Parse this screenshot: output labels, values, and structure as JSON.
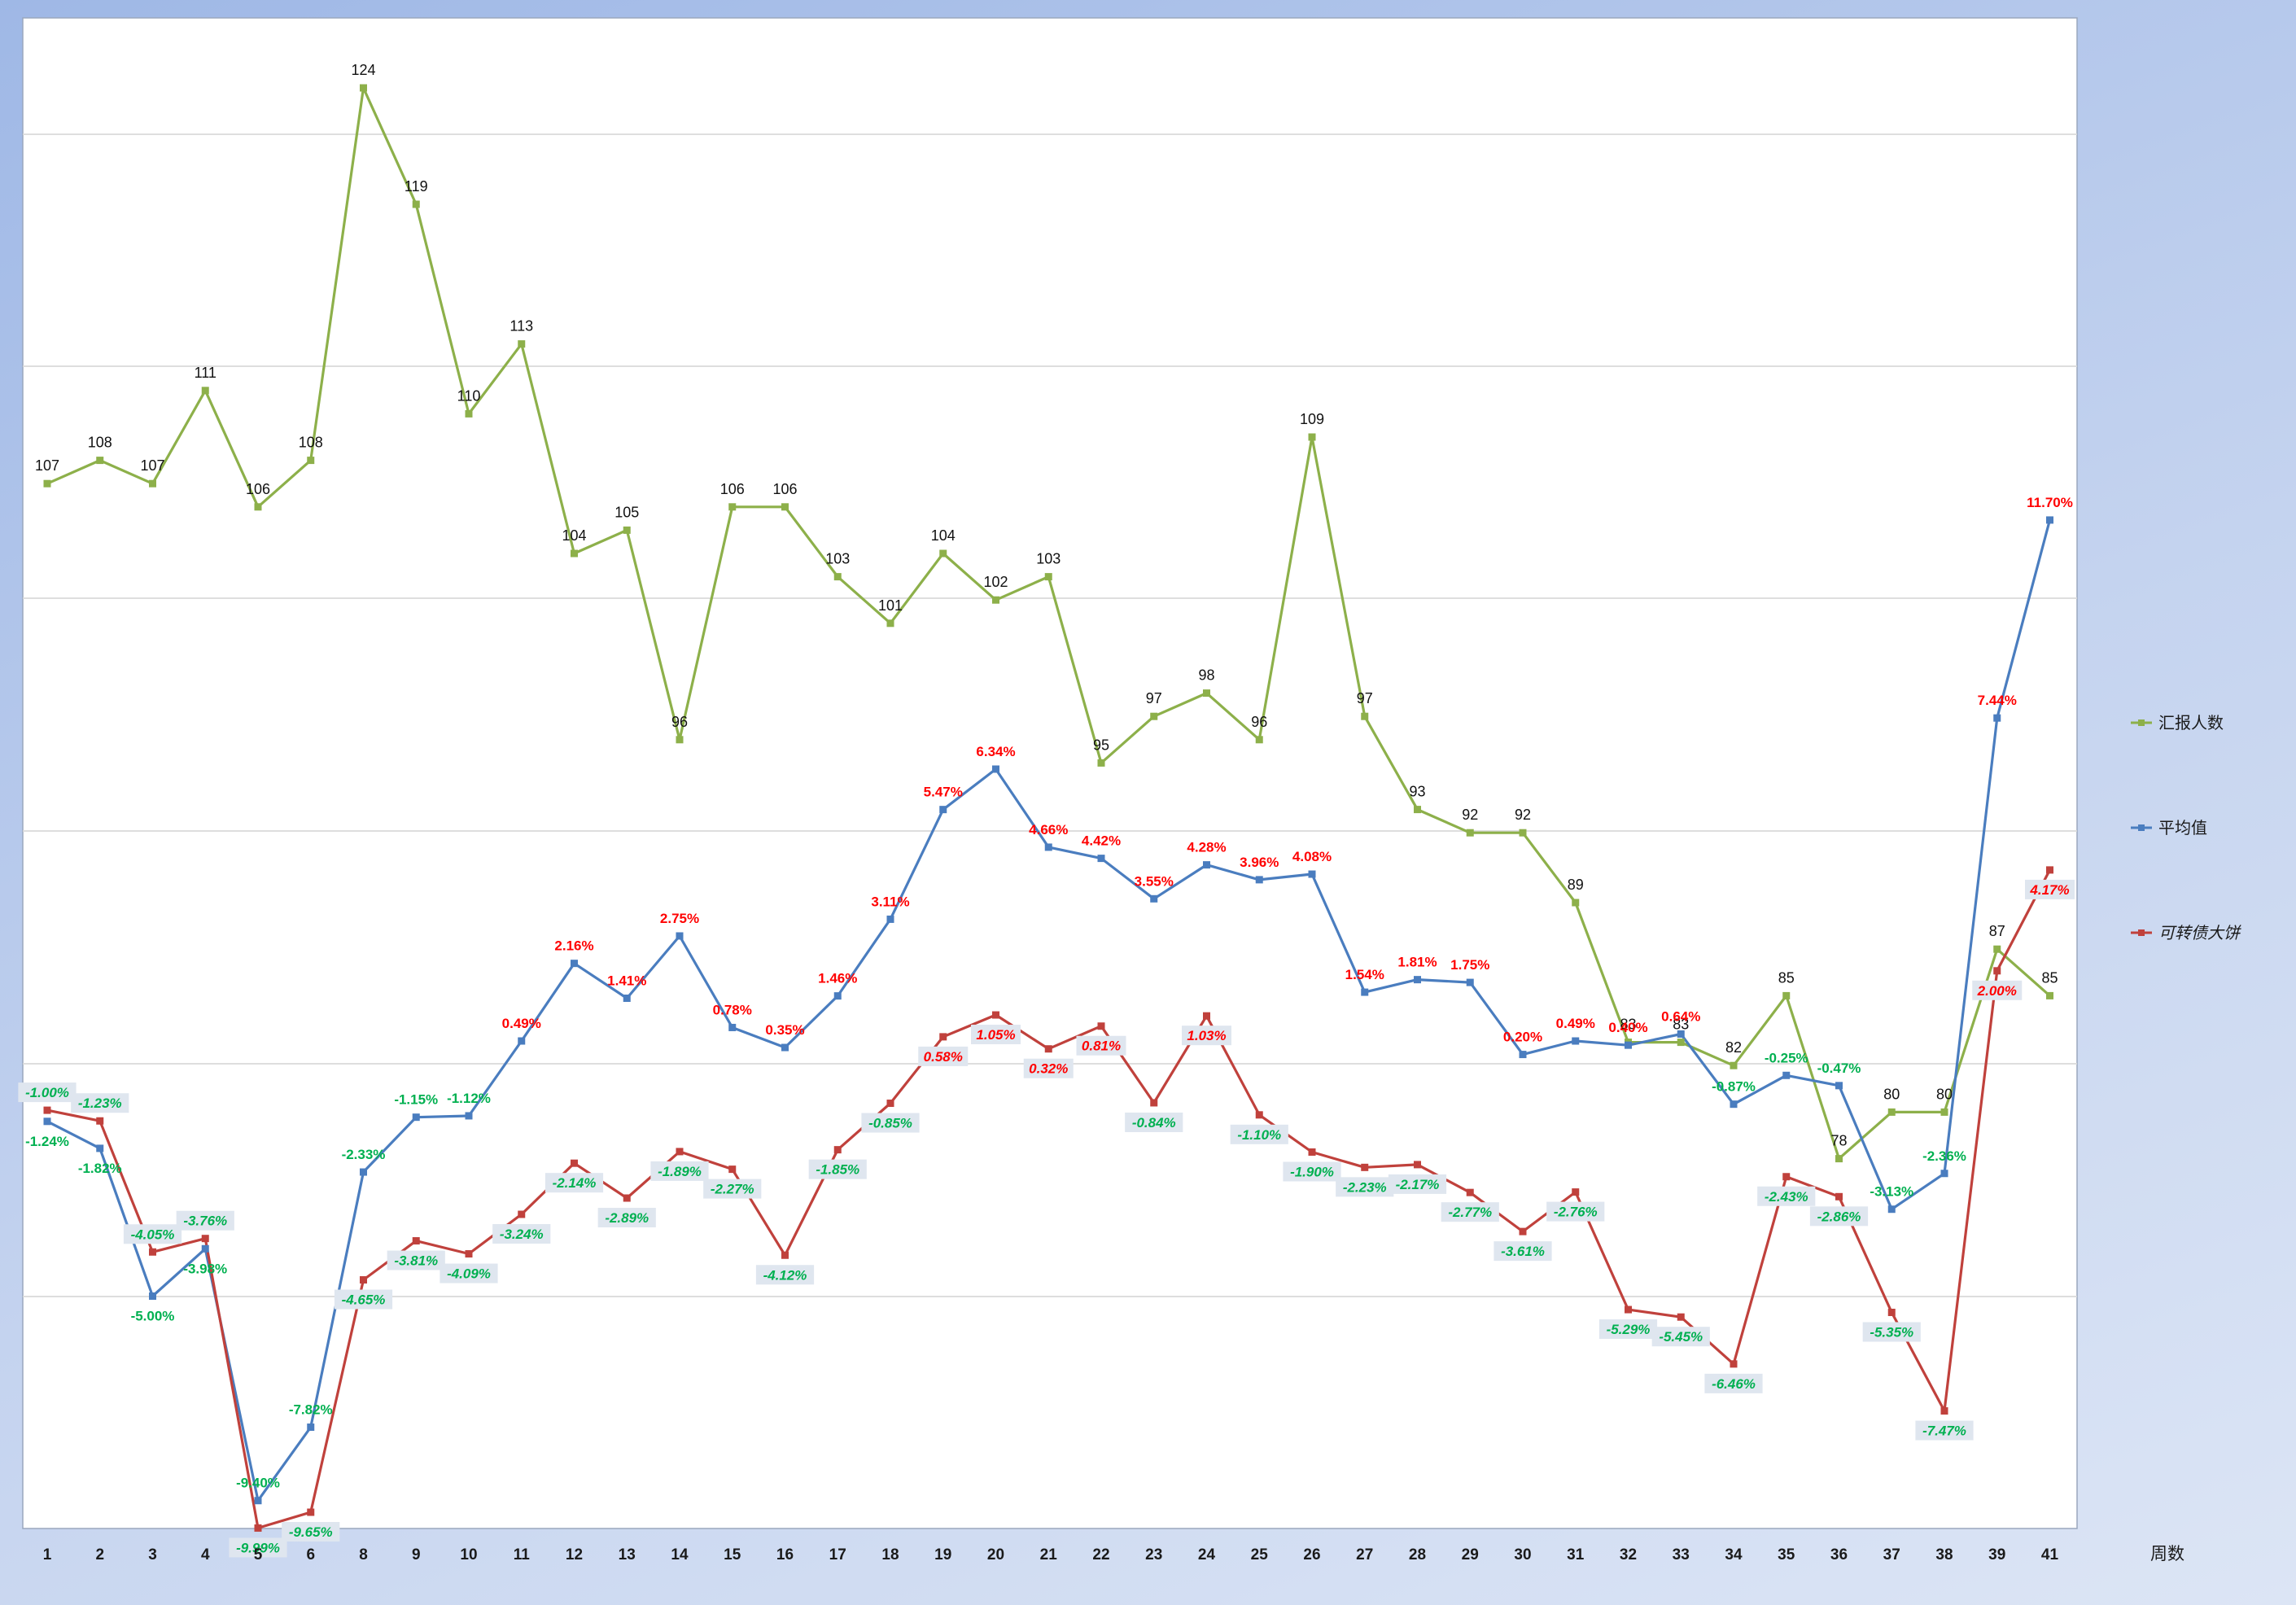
{
  "chart_data": {
    "type": "line",
    "xlabel": "周数",
    "categories": [
      "1",
      "2",
      "3",
      "4",
      "5",
      "6",
      "8",
      "9",
      "10",
      "11",
      "12",
      "13",
      "14",
      "15",
      "16",
      "17",
      "18",
      "19",
      "20",
      "21",
      "22",
      "23",
      "24",
      "25",
      "26",
      "27",
      "28",
      "29",
      "30",
      "31",
      "32",
      "33",
      "34",
      "35",
      "36",
      "37",
      "38",
      "39",
      "41"
    ],
    "legend_position": "right",
    "grid": true,
    "series": [
      {
        "name": "汇报人数",
        "color": "#8db04a",
        "values": [
          107,
          108,
          107,
          111,
          106,
          108,
          124,
          119,
          110,
          113,
          104,
          105,
          96,
          106,
          106,
          103,
          101,
          104,
          102,
          103,
          95,
          97,
          98,
          96,
          109,
          97,
          93,
          92,
          92,
          89,
          83,
          83,
          82,
          85,
          78,
          80,
          80,
          87,
          85
        ],
        "labels": [
          "107",
          "108",
          "107",
          "111",
          "106",
          "108",
          "124",
          "119",
          "110",
          "113",
          "104",
          "105",
          "96",
          "106",
          "106",
          "103",
          "101",
          "104",
          "102",
          "103",
          "95",
          "97",
          "98",
          "96",
          "109",
          "97",
          "93",
          "92",
          "92",
          "89",
          "83",
          "83",
          "82",
          "85",
          "78",
          "80",
          "80",
          "87",
          "85"
        ]
      },
      {
        "name": "平均值",
        "color": "#4a7dbf",
        "values": [
          -1.24,
          -1.82,
          -5.0,
          -3.98,
          -9.4,
          -7.82,
          -2.33,
          -1.15,
          -1.12,
          0.49,
          2.16,
          1.41,
          2.75,
          0.78,
          0.35,
          1.46,
          3.11,
          5.47,
          6.34,
          4.66,
          4.42,
          3.55,
          4.28,
          3.96,
          4.08,
          1.54,
          1.81,
          1.75,
          0.2,
          0.49,
          0.4,
          0.64,
          -0.87,
          -0.25,
          -0.47,
          -3.13,
          -2.36,
          7.44,
          11.7
        ],
        "labels": [
          "-1.24%",
          "-1.82%",
          "-5.00%",
          "-3.98%",
          "-9.40%",
          "-7.82%",
          "-2.33%",
          "-1.15%",
          "-1.12%",
          "0.49%",
          "2.16%",
          "1.41%",
          "2.75%",
          "0.78%",
          "0.35%",
          "1.46%",
          "3.11%",
          "5.47%",
          "6.34%",
          "4.66%",
          "4.42%",
          "3.55%",
          "4.28%",
          "3.96%",
          "4.08%",
          "1.54%",
          "1.81%",
          "1.75%",
          "0.20%",
          "0.49%",
          "0.40%",
          "0.64%",
          "-0.87%",
          "-0.25%",
          "-0.47%",
          "-3.13%",
          "-2.36%",
          "7.44%",
          "11.70%"
        ]
      },
      {
        "name": "可转债大饼",
        "color": "#c0413c",
        "values": [
          -1.0,
          -1.23,
          -4.05,
          -3.76,
          -9.99,
          -9.65,
          -4.65,
          -3.81,
          -4.09,
          -3.24,
          -2.14,
          -2.89,
          -1.89,
          -2.27,
          -4.12,
          -1.85,
          -0.85,
          0.58,
          1.05,
          0.32,
          0.81,
          -0.84,
          1.03,
          -1.1,
          -1.9,
          -2.23,
          -2.17,
          -2.77,
          -3.61,
          -2.76,
          -5.29,
          -5.45,
          -6.46,
          -2.43,
          -2.86,
          -5.35,
          -7.47,
          2.0,
          4.17
        ],
        "labels": [
          "-1.00%",
          "-1.23%",
          "-4.05%",
          "-3.76%",
          "-9.99%",
          "-9.65%",
          "-4.65%",
          "-3.81%",
          "-4.09%",
          "-3.24%",
          "-2.14%",
          "-2.89%",
          "-1.89%",
          "-2.27%",
          "-4.12%",
          "-1.85%",
          "-0.85%",
          "0.58%",
          "1.05%",
          "0.32%",
          "0.81%",
          "-0.84%",
          "1.03%",
          "-1.10%",
          "-1.90%",
          "-2.23%",
          "-2.17%",
          "-2.77%",
          "-3.61%",
          "-2.76%",
          "-5.29%",
          "-5.45%",
          "-6.46%",
          "-2.43%",
          "-2.86%",
          "-5.35%",
          "-7.47%",
          "2.00%",
          "4.17%"
        ]
      }
    ],
    "label_colors": {
      "positive": "#ff0000",
      "negative": "#00b050"
    }
  }
}
